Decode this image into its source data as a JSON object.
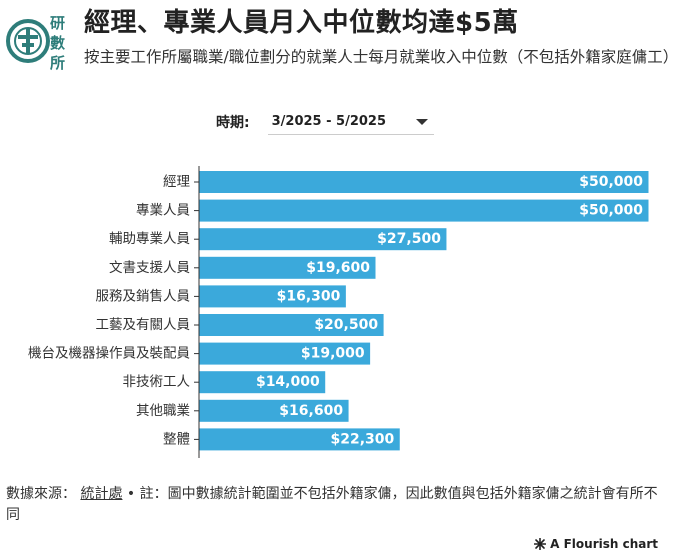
{
  "header": {
    "logo_text": "研數所",
    "title": "經理、專業人員月入中位數均達$5萬",
    "subtitle": "按主要工作所屬職業/職位劃分的就業人士每月就業收入中位數（不包括外籍家庭傭工）"
  },
  "filter": {
    "label": "時期:",
    "selected": "3/2025 - 5/2025",
    "icon": "caret-down-icon"
  },
  "chart_data": {
    "type": "bar",
    "orientation": "horizontal",
    "categories": [
      "經理",
      "專業人員",
      "輔助專業人員",
      "文書支援人員",
      "服務及銷售人員",
      "工藝及有關人員",
      "機台及機器操作員及裝配員",
      "非技術工人",
      "其他職業",
      "整體"
    ],
    "values": [
      50000,
      50000,
      27500,
      19600,
      16300,
      20500,
      19000,
      14000,
      16600,
      22300
    ],
    "value_labels": [
      "$50,000",
      "$50,000",
      "$27,500",
      "$19,600",
      "$16,300",
      "$20,500",
      "$19,000",
      "$14,000",
      "$16,600",
      "$22,300"
    ],
    "xlim": [
      0,
      50000
    ],
    "bar_color": "#3ba9db",
    "label_color": "#ffffff",
    "grid": false
  },
  "footer": {
    "source_prefix": "數據來源：",
    "source_link": "統計處",
    "note": "• 註：圖中數據統計範圍並不包括外籍家傭，因此數值與包括外籍家傭之統計會有所不同"
  },
  "branding": {
    "flourish_label": "A Flourish chart",
    "icon": "flourish-star-icon"
  },
  "colors": {
    "logo_teal": "#2e7d7a",
    "title": "#222222"
  }
}
